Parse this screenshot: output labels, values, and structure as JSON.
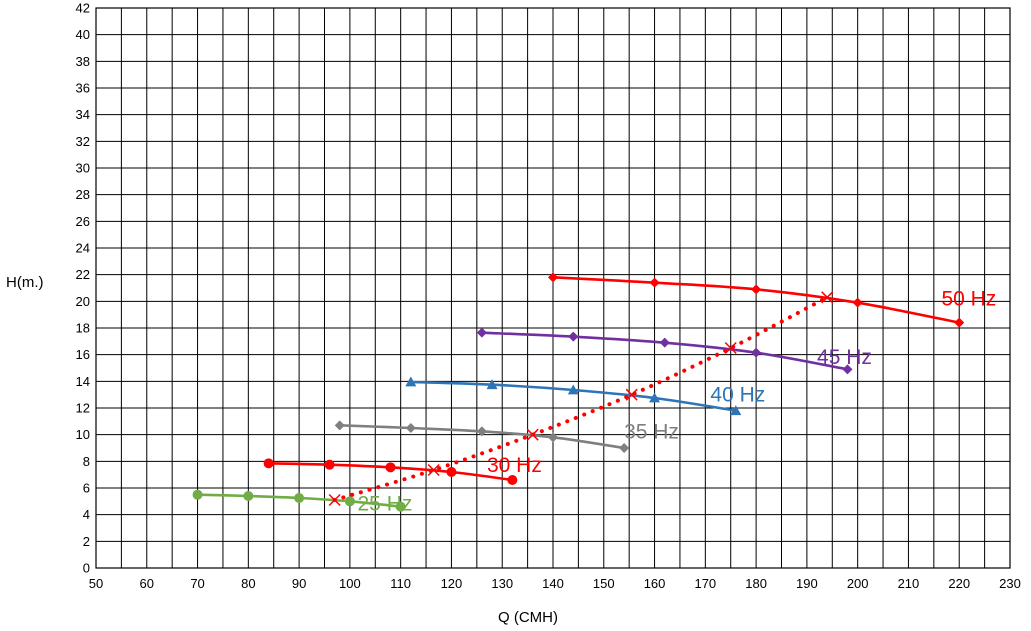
{
  "chart_data": {
    "type": "line",
    "xlabel": "Q (CMH)",
    "ylabel": "H(m.)",
    "xlim": [
      50,
      230
    ],
    "ylim": [
      0,
      42
    ],
    "x_major_step": 10,
    "x_minor_step": 5,
    "y_major_step": 2,
    "grid": true,
    "x_ticks": [
      50,
      60,
      70,
      80,
      90,
      100,
      110,
      120,
      130,
      140,
      150,
      160,
      170,
      180,
      190,
      200,
      210,
      220,
      230
    ],
    "y_ticks": [
      0,
      2,
      4,
      6,
      8,
      10,
      12,
      14,
      16,
      18,
      20,
      22,
      24,
      26,
      28,
      30,
      32,
      34,
      36,
      38,
      40,
      42
    ],
    "series": [
      {
        "name": "25 Hz",
        "color": "#70ad47",
        "marker": "circle",
        "x": [
          70,
          80,
          90,
          100,
          110
        ],
        "y": [
          5.5,
          5.4,
          5.25,
          5.0,
          4.6
        ],
        "label_pos": {
          "x": 101.5,
          "y": 4.3
        }
      },
      {
        "name": "30 Hz",
        "color": "#ff0000",
        "marker": "circle",
        "x": [
          84,
          96,
          108,
          120,
          132
        ],
        "y": [
          7.85,
          7.75,
          7.55,
          7.2,
          6.6
        ],
        "label_pos": {
          "x": 127,
          "y": 7.2
        }
      },
      {
        "name": "35 Hz",
        "color": "#7f7f7f",
        "marker": "diamond",
        "x": [
          98,
          112,
          126,
          140,
          154
        ],
        "y": [
          10.7,
          10.5,
          10.25,
          9.8,
          9.0
        ],
        "label_pos": {
          "x": 154,
          "y": 9.7
        }
      },
      {
        "name": "40 Hz",
        "color": "#2e75b6",
        "marker": "triangle",
        "x": [
          112,
          128,
          144,
          160,
          176
        ],
        "y": [
          13.95,
          13.75,
          13.35,
          12.75,
          11.8
        ],
        "label_pos": {
          "x": 171,
          "y": 12.5
        }
      },
      {
        "name": "45 Hz",
        "color": "#7030a0",
        "marker": "diamond",
        "x": [
          126,
          144,
          162,
          180,
          198
        ],
        "y": [
          17.65,
          17.35,
          16.9,
          16.15,
          14.9
        ],
        "label_pos": {
          "x": 192,
          "y": 15.3
        }
      },
      {
        "name": "50 Hz",
        "color": "#ff0000",
        "marker": "diamond",
        "x": [
          140,
          160,
          180,
          200,
          220
        ],
        "y": [
          21.8,
          21.4,
          20.9,
          19.9,
          18.4
        ],
        "label_pos": {
          "x": 216.5,
          "y": 19.7
        }
      },
      {
        "name": "",
        "color": "#ff0000",
        "marker": "x",
        "line_style": "dotted",
        "x": [
          97,
          116.5,
          136,
          155.5,
          175,
          194
        ],
        "y": [
          5.1,
          7.35,
          10.0,
          13.0,
          16.5,
          20.3
        ]
      }
    ]
  }
}
